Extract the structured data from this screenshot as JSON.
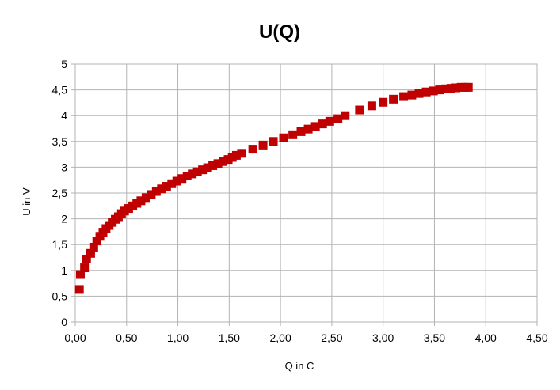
{
  "chart_data": {
    "type": "scatter",
    "title": "U(Q)",
    "xlabel": "Q in C",
    "ylabel": "U in V",
    "xlim": [
      0,
      4.5
    ],
    "ylim": [
      0,
      5
    ],
    "xticks": [
      "0,00",
      "0,50",
      "1,00",
      "1,50",
      "2,00",
      "2,50",
      "3,00",
      "3,50",
      "4,00",
      "4,50"
    ],
    "yticks": [
      "0",
      "0,5",
      "1",
      "1,5",
      "2",
      "2,5",
      "3",
      "3,5",
      "4",
      "4,5",
      "5"
    ],
    "grid": true,
    "legend": "none",
    "marker_color": "#c00000",
    "marker_shape": "square",
    "series": [
      {
        "x": [
          0.04,
          0.05,
          0.09,
          0.11,
          0.15,
          0.18,
          0.21,
          0.24,
          0.27,
          0.3,
          0.33,
          0.36,
          0.39,
          0.42,
          0.45,
          0.48,
          0.52,
          0.56,
          0.6,
          0.64,
          0.69,
          0.74,
          0.79,
          0.84,
          0.89,
          0.94,
          0.99,
          1.04,
          1.09,
          1.14,
          1.19,
          1.24,
          1.29,
          1.34,
          1.39,
          1.44,
          1.49,
          1.53,
          1.57,
          1.62,
          1.73,
          1.83,
          1.93,
          2.03,
          2.12,
          2.2,
          2.27,
          2.34,
          2.41,
          2.48,
          2.56,
          2.63,
          2.77,
          2.89,
          3.0,
          3.1,
          3.2,
          3.28,
          3.35,
          3.42,
          3.49,
          3.55,
          3.61,
          3.66,
          3.71,
          3.76,
          3.8,
          3.83
        ],
        "y": [
          0.63,
          0.92,
          1.05,
          1.22,
          1.33,
          1.45,
          1.57,
          1.66,
          1.74,
          1.81,
          1.87,
          1.93,
          1.99,
          2.04,
          2.1,
          2.15,
          2.2,
          2.25,
          2.3,
          2.35,
          2.41,
          2.47,
          2.53,
          2.58,
          2.63,
          2.68,
          2.73,
          2.78,
          2.83,
          2.87,
          2.91,
          2.95,
          2.99,
          3.03,
          3.07,
          3.11,
          3.15,
          3.19,
          3.23,
          3.27,
          3.35,
          3.43,
          3.5,
          3.57,
          3.63,
          3.69,
          3.74,
          3.79,
          3.84,
          3.89,
          3.94,
          4.0,
          4.11,
          4.19,
          4.26,
          4.32,
          4.37,
          4.4,
          4.43,
          4.46,
          4.48,
          4.5,
          4.52,
          4.53,
          4.54,
          4.55,
          4.55,
          4.55
        ]
      }
    ]
  }
}
